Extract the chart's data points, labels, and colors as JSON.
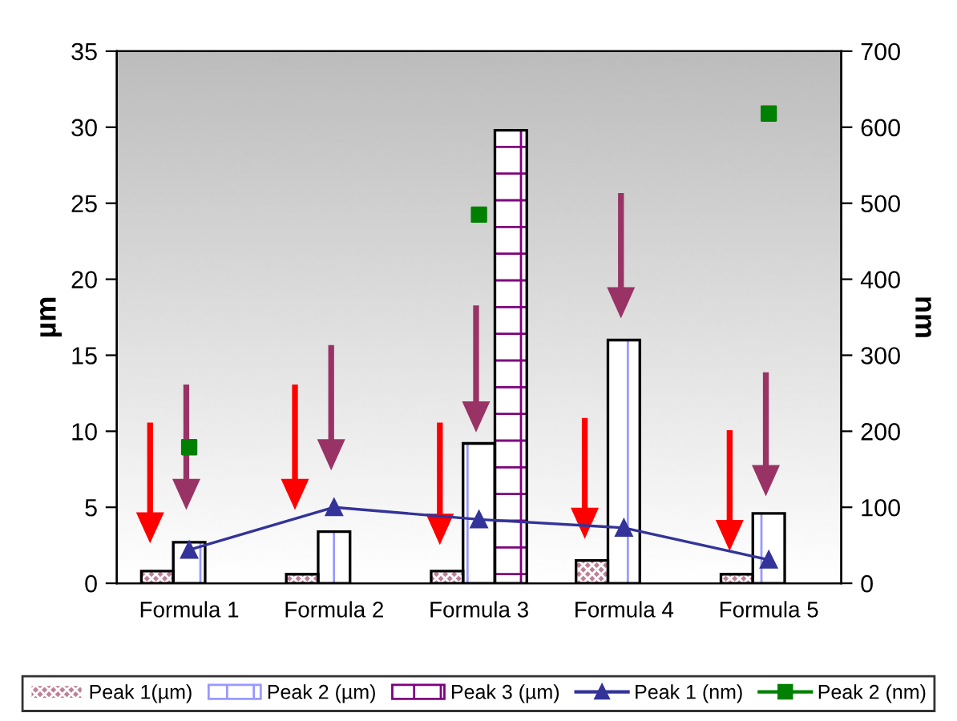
{
  "chart_data": {
    "type": "bar",
    "categories": [
      "Formula 1",
      "Formula 2",
      "Formula 3",
      "Formula 4",
      "Formula 5"
    ],
    "ylabel": "µm",
    "y2label": "nm",
    "ylim": [
      0,
      35
    ],
    "yticks": [
      0,
      5,
      10,
      15,
      20,
      25,
      30,
      35
    ],
    "y2lim": [
      0,
      700
    ],
    "y2ticks": [
      0,
      100,
      200,
      300,
      400,
      500,
      600,
      700
    ],
    "grid": false,
    "legend": "bottom",
    "series": [
      {
        "name": "Peak 1(µm)",
        "color": "#c08098",
        "values": [
          0.8,
          0.6,
          0.8,
          1.5,
          0.6
        ]
      },
      {
        "name": "Peak 2 (µm)",
        "color": "#9999ff",
        "values": [
          2.7,
          3.4,
          9.2,
          16.0,
          4.6
        ]
      },
      {
        "name": "Peak 3 (µm)",
        "color": "#800080",
        "values": [
          null,
          null,
          29.8,
          null,
          null
        ]
      },
      {
        "name": "Peak 1 (nm)",
        "type": "line",
        "axis": "y2",
        "color": "#333399",
        "marker": "triangle",
        "values": [
          44,
          100,
          84,
          73,
          31
        ]
      },
      {
        "name": "Peak 2 (nm)",
        "type": "scatter",
        "axis": "y2",
        "color": "#008000",
        "marker": "square",
        "values": [
          179,
          null,
          485,
          null,
          618
        ]
      }
    ]
  }
}
